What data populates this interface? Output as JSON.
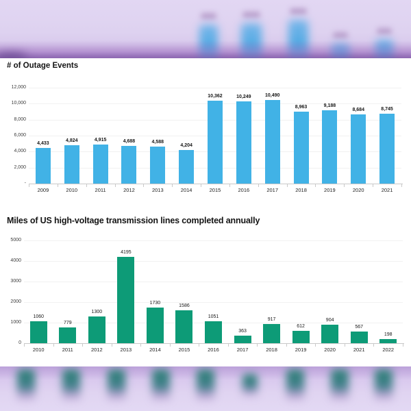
{
  "colors": {
    "page_background": "#ddd0ee",
    "card_background": "#ffffff",
    "outage_bar_blue": "#41b2e6",
    "transmission_bar_green": "#0d9b77",
    "gridline": "#f1f1f1",
    "axis_line": "#c9c9c9",
    "text": "#141414"
  },
  "chart_data": [
    {
      "type": "bar",
      "title": "# of Outage Events",
      "xlabel": "",
      "ylabel": "",
      "categories": [
        "2009",
        "2010",
        "2011",
        "2012",
        "2013",
        "2014",
        "2015",
        "2016",
        "2017",
        "2018",
        "2019",
        "2020",
        "2021"
      ],
      "values": [
        4433,
        4824,
        4915,
        4688,
        4588,
        4204,
        10362,
        10249,
        10490,
        8963,
        9188,
        8684,
        8745
      ],
      "value_labels": [
        "4,433",
        "4,824",
        "4,915",
        "4,688",
        "4,588",
        "4,204",
        "10,362",
        "10,249",
        "10,490",
        "8,963",
        "9,188",
        "8,684",
        "8,745"
      ],
      "ytick_values": [
        0,
        2000,
        4000,
        6000,
        8000,
        10000,
        12000
      ],
      "ytick_labels": [
        "-",
        "2,000",
        "4,000",
        "6,000",
        "8,000",
        "10,000",
        "12,000"
      ],
      "ylim": [
        0,
        12000
      ],
      "bar_color": "#41b2e6",
      "grid": true,
      "legend_position": "none"
    },
    {
      "type": "bar",
      "title": "Miles of US high-voltage transmission lines completed annually",
      "xlabel": "",
      "ylabel": "",
      "categories": [
        "2010",
        "2011",
        "2012",
        "2013",
        "2014",
        "2015",
        "2016",
        "2017",
        "2018",
        "2019",
        "2020",
        "2021",
        "2022"
      ],
      "values": [
        1060,
        779,
        1300,
        4195,
        1730,
        1586,
        1051,
        363,
        917,
        612,
        904,
        567,
        198
      ],
      "value_labels": [
        "1060",
        "779",
        "1300",
        "4195",
        "1730",
        "1586",
        "1051",
        "363",
        "917",
        "612",
        "904",
        "567",
        "198"
      ],
      "ytick_values": [
        0,
        1000,
        2000,
        3000,
        4000,
        5000
      ],
      "ytick_labels": [
        "0",
        "1000",
        "2000",
        "3000",
        "4000",
        "5000"
      ],
      "ylim": [
        0,
        5000
      ],
      "bar_color": "#0d9b77",
      "grid": true,
      "legend_position": "none"
    }
  ]
}
